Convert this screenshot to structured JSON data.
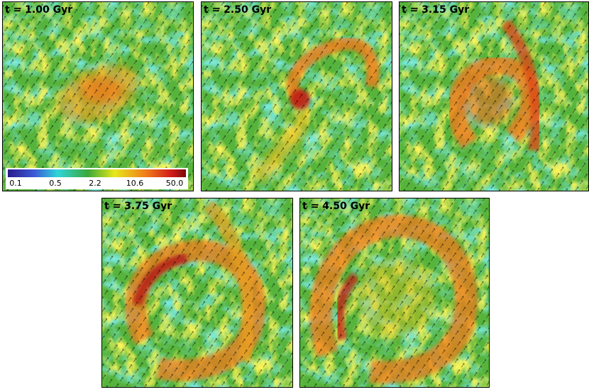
{
  "panels": [
    {
      "label": "t = 1.00 Gyr"
    },
    {
      "label": "t = 2.50 Gyr"
    },
    {
      "label": "t = 3.15 Gyr"
    },
    {
      "label": "t = 3.75 Gyr"
    },
    {
      "label": "t = 4.50 Gyr"
    }
  ],
  "colorbar": {
    "ticks": [
      "0.1",
      "0.5",
      "2.2",
      "10.6",
      "50.0"
    ]
  }
}
